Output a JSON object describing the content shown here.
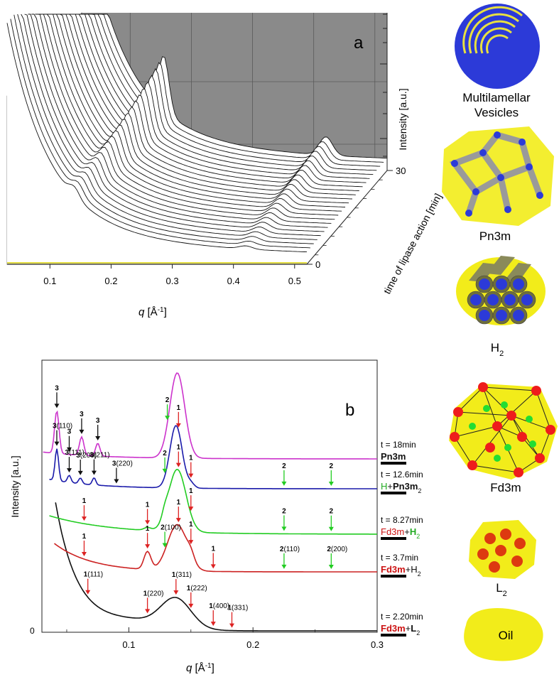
{
  "chart_data": [
    {
      "panel": "a",
      "type": "line",
      "subtype": "waterfall-3d",
      "panel_label": "a",
      "xlabel": "q [Å⁻¹]",
      "xlabel_var": "q",
      "xlabel_unit": " [Å",
      "xlabel_sup": "-1",
      "xlabel_end": "]",
      "ylabel": "Intensity [a.u.]",
      "zlabel": "time of lipase action [min]",
      "xlim": [
        0.03,
        0.52
      ],
      "xticks": [
        "0.1",
        "0.2",
        "0.3",
        "0.4",
        "0.5"
      ],
      "x_tick_values": [
        0.1,
        0.2,
        0.3,
        0.4,
        0.5
      ],
      "zticks": [
        "30",
        "0"
      ],
      "z_tick_values": [
        30,
        0
      ],
      "zlim": [
        0,
        30
      ],
      "grid": true,
      "log_y": true,
      "n_curves": 24,
      "peak_q_early": 0.14,
      "peak_q_late": 0.155,
      "secondary_peak_q": 0.42
    },
    {
      "panel": "b",
      "type": "line",
      "panel_label": "b",
      "xlabel": "q [Å⁻¹]",
      "xlabel_var": "q",
      "xlabel_unit": " [Å",
      "xlabel_sup": "-1",
      "xlabel_end": "]",
      "ylabel": "Intensity [a.u.]",
      "xlim": [
        0.03,
        0.3
      ],
      "xticks": [
        "0.1",
        "0.2",
        "0.3"
      ],
      "x_tick_values": [
        0.1,
        0.2,
        0.3
      ],
      "y_zero_label": "0",
      "series": [
        {
          "name": "t = 2.20min",
          "color": "#111111",
          "phases": [
            {
              "text": "Fd3m",
              "color": "#cc1111",
              "bold": true
            },
            {
              "text": "+",
              "color": "#111111"
            },
            {
              "text": "L",
              "color": "#111111",
              "bold": true
            }
          ],
          "phase_sub": "2"
        },
        {
          "name": "t = 3.7min",
          "color": "#cc2222",
          "phases": [
            {
              "text": "Fd3m",
              "color": "#cc1111",
              "bold": true
            },
            {
              "text": "+",
              "color": "#111111"
            },
            {
              "text": "H",
              "color": "#111111"
            }
          ],
          "phase_sub": "2"
        },
        {
          "name": "t = 8.27min",
          "color": "#22cc22",
          "phases": [
            {
              "text": "Fd3m",
              "color": "#cc1111"
            },
            {
              "text": "+",
              "color": "#111111"
            },
            {
              "text": "H",
              "color": "#22aa22",
              "bold": true
            }
          ],
          "phase_sub": "2"
        },
        {
          "name": "t = 12.6min",
          "color": "#1a1aaa",
          "phases": [
            {
              "text": "H",
              "color": "#22aa22"
            },
            {
              "text": "+",
              "color": "#111111"
            },
            {
              "text": "Pn3m",
              "color": "#111111",
              "bold": true
            }
          ],
          "phase_sub": "2"
        },
        {
          "name": "t = 18min",
          "color": "#cc33cc",
          "phases": [
            {
              "text": "Pn3m",
              "color": "#111111",
              "bold": true
            }
          ],
          "phase_sub": ""
        }
      ],
      "peak_annotations": [
        {
          "phase": "3",
          "label": "",
          "q": 0.042,
          "curve": 4
        },
        {
          "phase": "3",
          "label": "",
          "q": 0.052,
          "curve": 4
        },
        {
          "phase": "3",
          "label": "",
          "q": 0.062,
          "curve": 4
        },
        {
          "phase": "3",
          "label": "",
          "q": 0.075,
          "curve": 4
        },
        {
          "phase": "2",
          "label": "",
          "q": 0.131,
          "curve": 4
        },
        {
          "phase": "3",
          "label": "(110)",
          "q": 0.042,
          "curve": 3
        },
        {
          "phase": "3",
          "label": "(111)",
          "q": 0.052,
          "curve": 3
        },
        {
          "phase": "3",
          "label": "(200)",
          "q": 0.061,
          "curve": 3
        },
        {
          "phase": "3",
          "label": "(211)",
          "q": 0.072,
          "curve": 3
        },
        {
          "phase": "3",
          "label": "(220)",
          "q": 0.09,
          "curve": 3
        },
        {
          "phase": "2",
          "label": "",
          "q": 0.129,
          "curve": 3
        },
        {
          "phase": "1",
          "label": "",
          "q": 0.14,
          "curve": 3
        },
        {
          "phase": "1",
          "label": "",
          "q": 0.15,
          "curve": 3
        },
        {
          "phase": "2",
          "label": "",
          "q": 0.225,
          "curve": 3
        },
        {
          "phase": "2",
          "label": "",
          "q": 0.263,
          "curve": 3
        },
        {
          "phase": "1",
          "label": "",
          "q": 0.064,
          "curve": 2
        },
        {
          "phase": "1",
          "label": "",
          "q": 0.115,
          "curve": 2
        },
        {
          "phase": "1",
          "label": "",
          "q": 0.14,
          "curve": 2
        },
        {
          "phase": "1",
          "label": "",
          "q": 0.15,
          "curve": 2
        },
        {
          "phase": "2",
          "label": "",
          "q": 0.225,
          "curve": 2
        },
        {
          "phase": "2",
          "label": "",
          "q": 0.263,
          "curve": 2
        },
        {
          "phase": "1",
          "label": "",
          "q": 0.064,
          "curve": 1
        },
        {
          "phase": "1",
          "label": "",
          "q": 0.115,
          "curve": 1
        },
        {
          "phase": "2",
          "label": "(100)",
          "q": 0.129,
          "curve": 1
        },
        {
          "phase": "1",
          "label": "",
          "q": 0.14,
          "curve": 1
        },
        {
          "phase": "1",
          "label": "",
          "q": 0.15,
          "curve": 1
        },
        {
          "phase": "1",
          "label": "",
          "q": 0.168,
          "curve": 1
        },
        {
          "phase": "2",
          "label": "(110)",
          "q": 0.225,
          "curve": 1
        },
        {
          "phase": "2",
          "label": "(200)",
          "q": 0.263,
          "curve": 1
        },
        {
          "phase": "1",
          "label": "(111)",
          "q": 0.067,
          "curve": 0
        },
        {
          "phase": "1",
          "label": "(220)",
          "q": 0.115,
          "curve": 0
        },
        {
          "phase": "1",
          "label": "(311)",
          "q": 0.138,
          "curve": 0
        },
        {
          "phase": "1",
          "label": "(222)",
          "q": 0.15,
          "curve": 0
        },
        {
          "phase": "1",
          "label": "(400)",
          "q": 0.168,
          "curve": 0
        },
        {
          "phase": "1",
          "label": "(331)",
          "q": 0.183,
          "curve": 0
        }
      ]
    }
  ],
  "structures": [
    {
      "name": "multilamellar-vesicles",
      "label": [
        "Multilamellar",
        "Vesicles"
      ]
    },
    {
      "name": "pn3m",
      "label": [
        "Pn3m"
      ]
    },
    {
      "name": "h2",
      "label": [
        "H"
      ],
      "sub": "2"
    },
    {
      "name": "fd3m",
      "label": [
        "Fd3m"
      ]
    },
    {
      "name": "l2",
      "label": [
        "L"
      ],
      "sub": "2"
    },
    {
      "name": "oil",
      "label": [
        "Oil"
      ]
    }
  ],
  "colors": {
    "lipid_yellow": "#f2ec1a",
    "water_blue": "#2c3ad8",
    "fd3m_red": "#ee1c1c",
    "fd3m_green": "#22dd33",
    "l2_red": "#dd3a10",
    "panel_a_wall": "#8a8a8a"
  }
}
